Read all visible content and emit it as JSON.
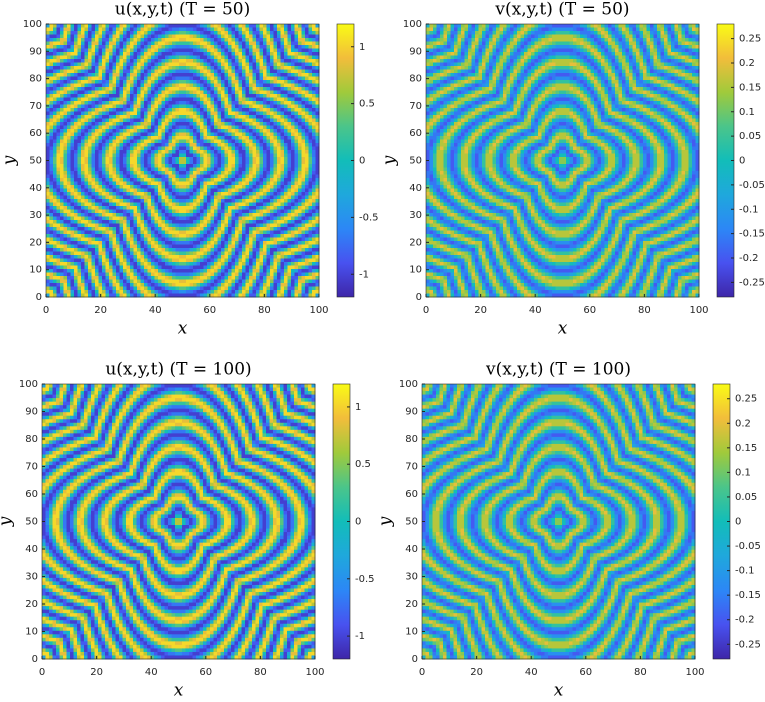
{
  "chart_data": [
    {
      "type": "heatmap",
      "title": "u(x,y,t) (T = 50)",
      "xlabel": "x",
      "ylabel": "y",
      "xlim": [
        0,
        100
      ],
      "ylim": [
        0,
        100
      ],
      "xticks": [
        0,
        20,
        40,
        60,
        80,
        100
      ],
      "yticks": [
        0,
        10,
        20,
        30,
        40,
        50,
        60,
        70,
        80,
        90,
        100
      ],
      "clim": [
        -1.2,
        1.2
      ],
      "cticks": [
        -1,
        -0.5,
        0,
        0.5,
        1
      ]
    },
    {
      "type": "heatmap",
      "title": "v(x,y,t) (T = 50)",
      "xlabel": "x",
      "ylabel": "y",
      "xlim": [
        0,
        100
      ],
      "ylim": [
        0,
        100
      ],
      "xticks": [
        0,
        20,
        40,
        60,
        80,
        100
      ],
      "yticks": [
        0,
        10,
        20,
        30,
        40,
        50,
        60,
        70,
        80,
        90,
        100
      ],
      "clim": [
        -0.28,
        0.28
      ],
      "cticks": [
        -0.25,
        -0.2,
        -0.15,
        -0.1,
        -0.05,
        0,
        0.05,
        0.1,
        0.15,
        0.2,
        0.25
      ]
    },
    {
      "type": "heatmap",
      "title": "u(x,y,t) (T = 100)",
      "xlabel": "x",
      "ylabel": "y",
      "xlim": [
        0,
        100
      ],
      "ylim": [
        0,
        100
      ],
      "xticks": [
        0,
        20,
        40,
        60,
        80,
        100
      ],
      "yticks": [
        0,
        10,
        20,
        30,
        40,
        50,
        60,
        70,
        80,
        90,
        100
      ],
      "clim": [
        -1.2,
        1.2
      ],
      "cticks": [
        -1,
        -0.5,
        0,
        0.5,
        1
      ]
    },
    {
      "type": "heatmap",
      "title": "v(x,y,t) (T = 100)",
      "xlabel": "x",
      "ylabel": "y",
      "xlim": [
        0,
        100
      ],
      "ylim": [
        0,
        100
      ],
      "xticks": [
        0,
        20,
        40,
        60,
        80,
        100
      ],
      "yticks": [
        0,
        10,
        20,
        30,
        40,
        50,
        60,
        70,
        80,
        90,
        100
      ],
      "clim": [
        -0.28,
        0.28
      ],
      "cticks": [
        -0.25,
        -0.2,
        -0.15,
        -0.1,
        -0.05,
        0,
        0.05,
        0.1,
        0.15,
        0.2,
        0.25
      ]
    }
  ]
}
